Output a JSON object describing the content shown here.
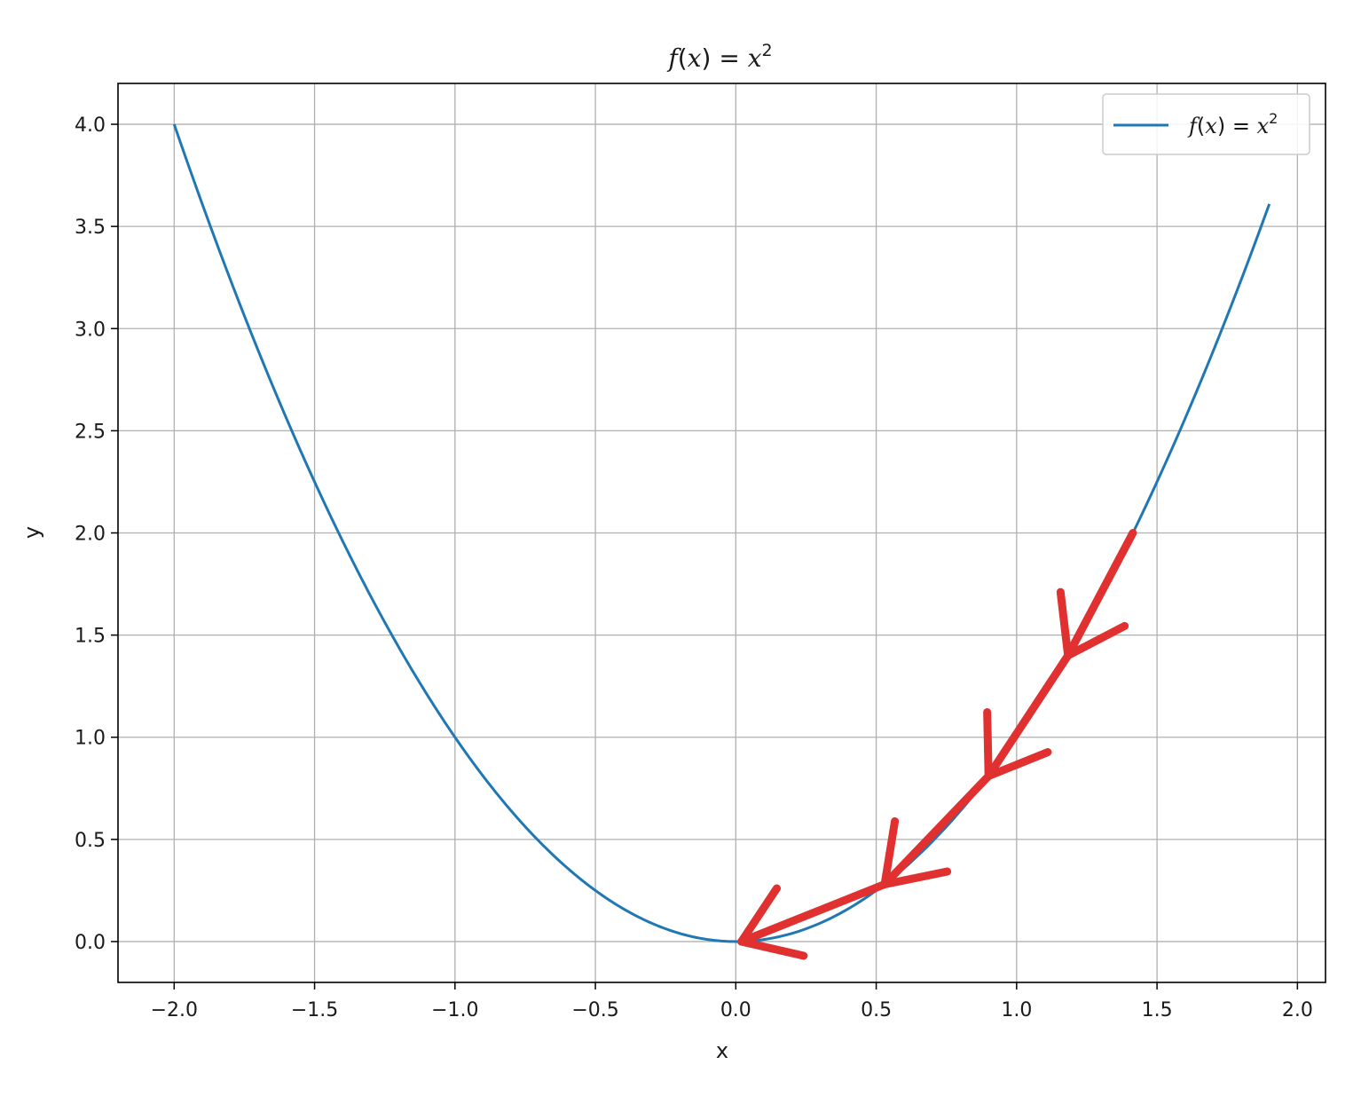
{
  "colors": {
    "series": "#1f77b4",
    "arrows": "#e0302f",
    "grid": "#b0b0b0",
    "axes": "#000000"
  },
  "chart_data": {
    "type": "line",
    "title": {
      "func": "f",
      "open": "(",
      "var": "x",
      "close": ")",
      "equals": " = ",
      "base": "x",
      "exponent": "2"
    },
    "xlabel": "x",
    "ylabel": "y",
    "xlim": [
      -2.2,
      2.1
    ],
    "ylim": [
      -0.2,
      4.2
    ],
    "xticks": [
      -2.0,
      -1.5,
      -1.0,
      -0.5,
      0.0,
      0.5,
      1.0,
      1.5,
      2.0
    ],
    "xtick_labels": [
      "−2.0",
      "−1.5",
      "−1.0",
      "−0.5",
      "0.0",
      "0.5",
      "1.0",
      "1.5",
      "2.0"
    ],
    "yticks": [
      0.0,
      0.5,
      1.0,
      1.5,
      2.0,
      2.5,
      3.0,
      3.5,
      4.0
    ],
    "ytick_labels": [
      "0.0",
      "0.5",
      "1.0",
      "1.5",
      "2.0",
      "2.5",
      "3.0",
      "3.5",
      "4.0"
    ],
    "grid": true,
    "legend_position": "upper-right",
    "series": [
      {
        "name": {
          "func": "f",
          "open": "(",
          "var": "x",
          "close": ")",
          "equals": " = ",
          "base": "x",
          "exponent": "2"
        },
        "x_start": -2.0,
        "x_end": 1.9,
        "function": "x^2"
      }
    ],
    "annotations": {
      "type": "arrows",
      "color_name": "red",
      "steps": [
        {
          "from": [
            1.414,
            2.0
          ],
          "to": [
            1.183,
            1.4
          ]
        },
        {
          "from": [
            1.183,
            1.4
          ],
          "to": [
            0.9,
            0.81
          ]
        },
        {
          "from": [
            0.9,
            0.81
          ],
          "to": [
            0.53,
            0.28
          ]
        },
        {
          "from": [
            0.53,
            0.28
          ],
          "to": [
            0.02,
            0.0
          ]
        }
      ]
    }
  }
}
